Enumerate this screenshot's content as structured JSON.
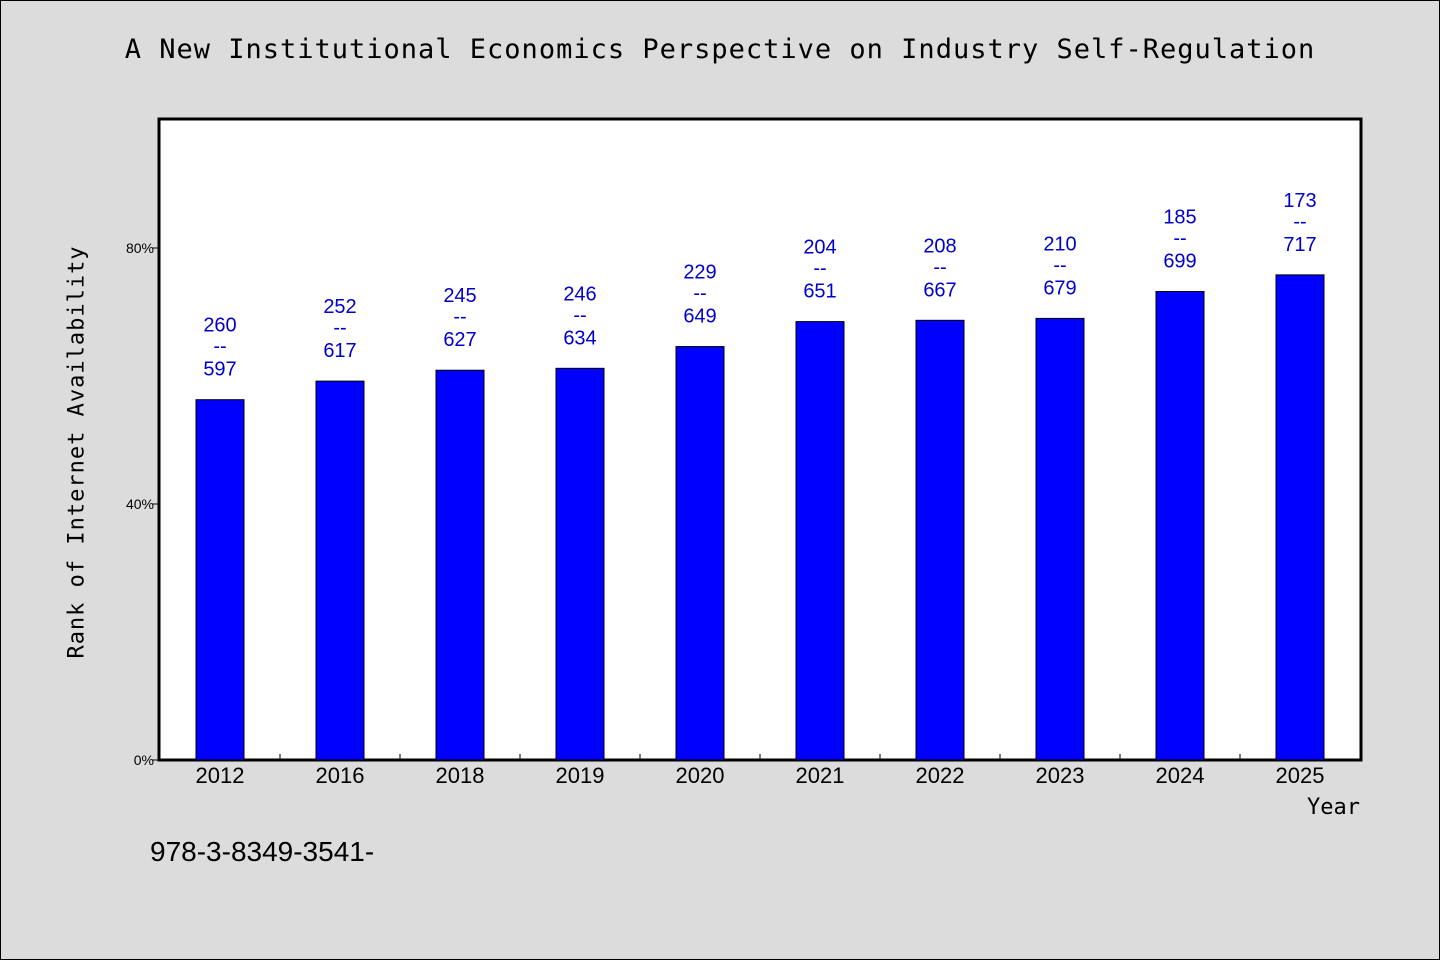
{
  "chart_data": {
    "type": "bar",
    "title": "A New Institutional Economics Perspective on Industry Self-Regulation",
    "xlabel": "Year",
    "ylabel": "Rank of Internet Availability",
    "categories": [
      "2012",
      "2016",
      "2018",
      "2019",
      "2020",
      "2021",
      "2022",
      "2023",
      "2024",
      "2025"
    ],
    "values": [
      56.3,
      59.2,
      60.9,
      61.2,
      64.6,
      68.5,
      68.7,
      69.0,
      73.2,
      75.8
    ],
    "labels": [
      {
        "top": "260",
        "bottom": "597"
      },
      {
        "top": "252",
        "bottom": "617"
      },
      {
        "top": "245",
        "bottom": "627"
      },
      {
        "top": "246",
        "bottom": "634"
      },
      {
        "top": "229",
        "bottom": "649"
      },
      {
        "top": "204",
        "bottom": "651"
      },
      {
        "top": "208",
        "bottom": "667"
      },
      {
        "top": "210",
        "bottom": "679"
      },
      {
        "top": "185",
        "bottom": "699"
      },
      {
        "top": "173",
        "bottom": "717"
      }
    ],
    "label_separator": "--",
    "ylim": [
      0,
      100
    ],
    "yticks": [
      0,
      40,
      80
    ],
    "ytick_labels": [
      "0%",
      "40%",
      "80%"
    ],
    "grid": false,
    "bar_color": "#0000ff",
    "label_color": "#0000cc"
  },
  "footnote": "978-3-8349-3541-"
}
